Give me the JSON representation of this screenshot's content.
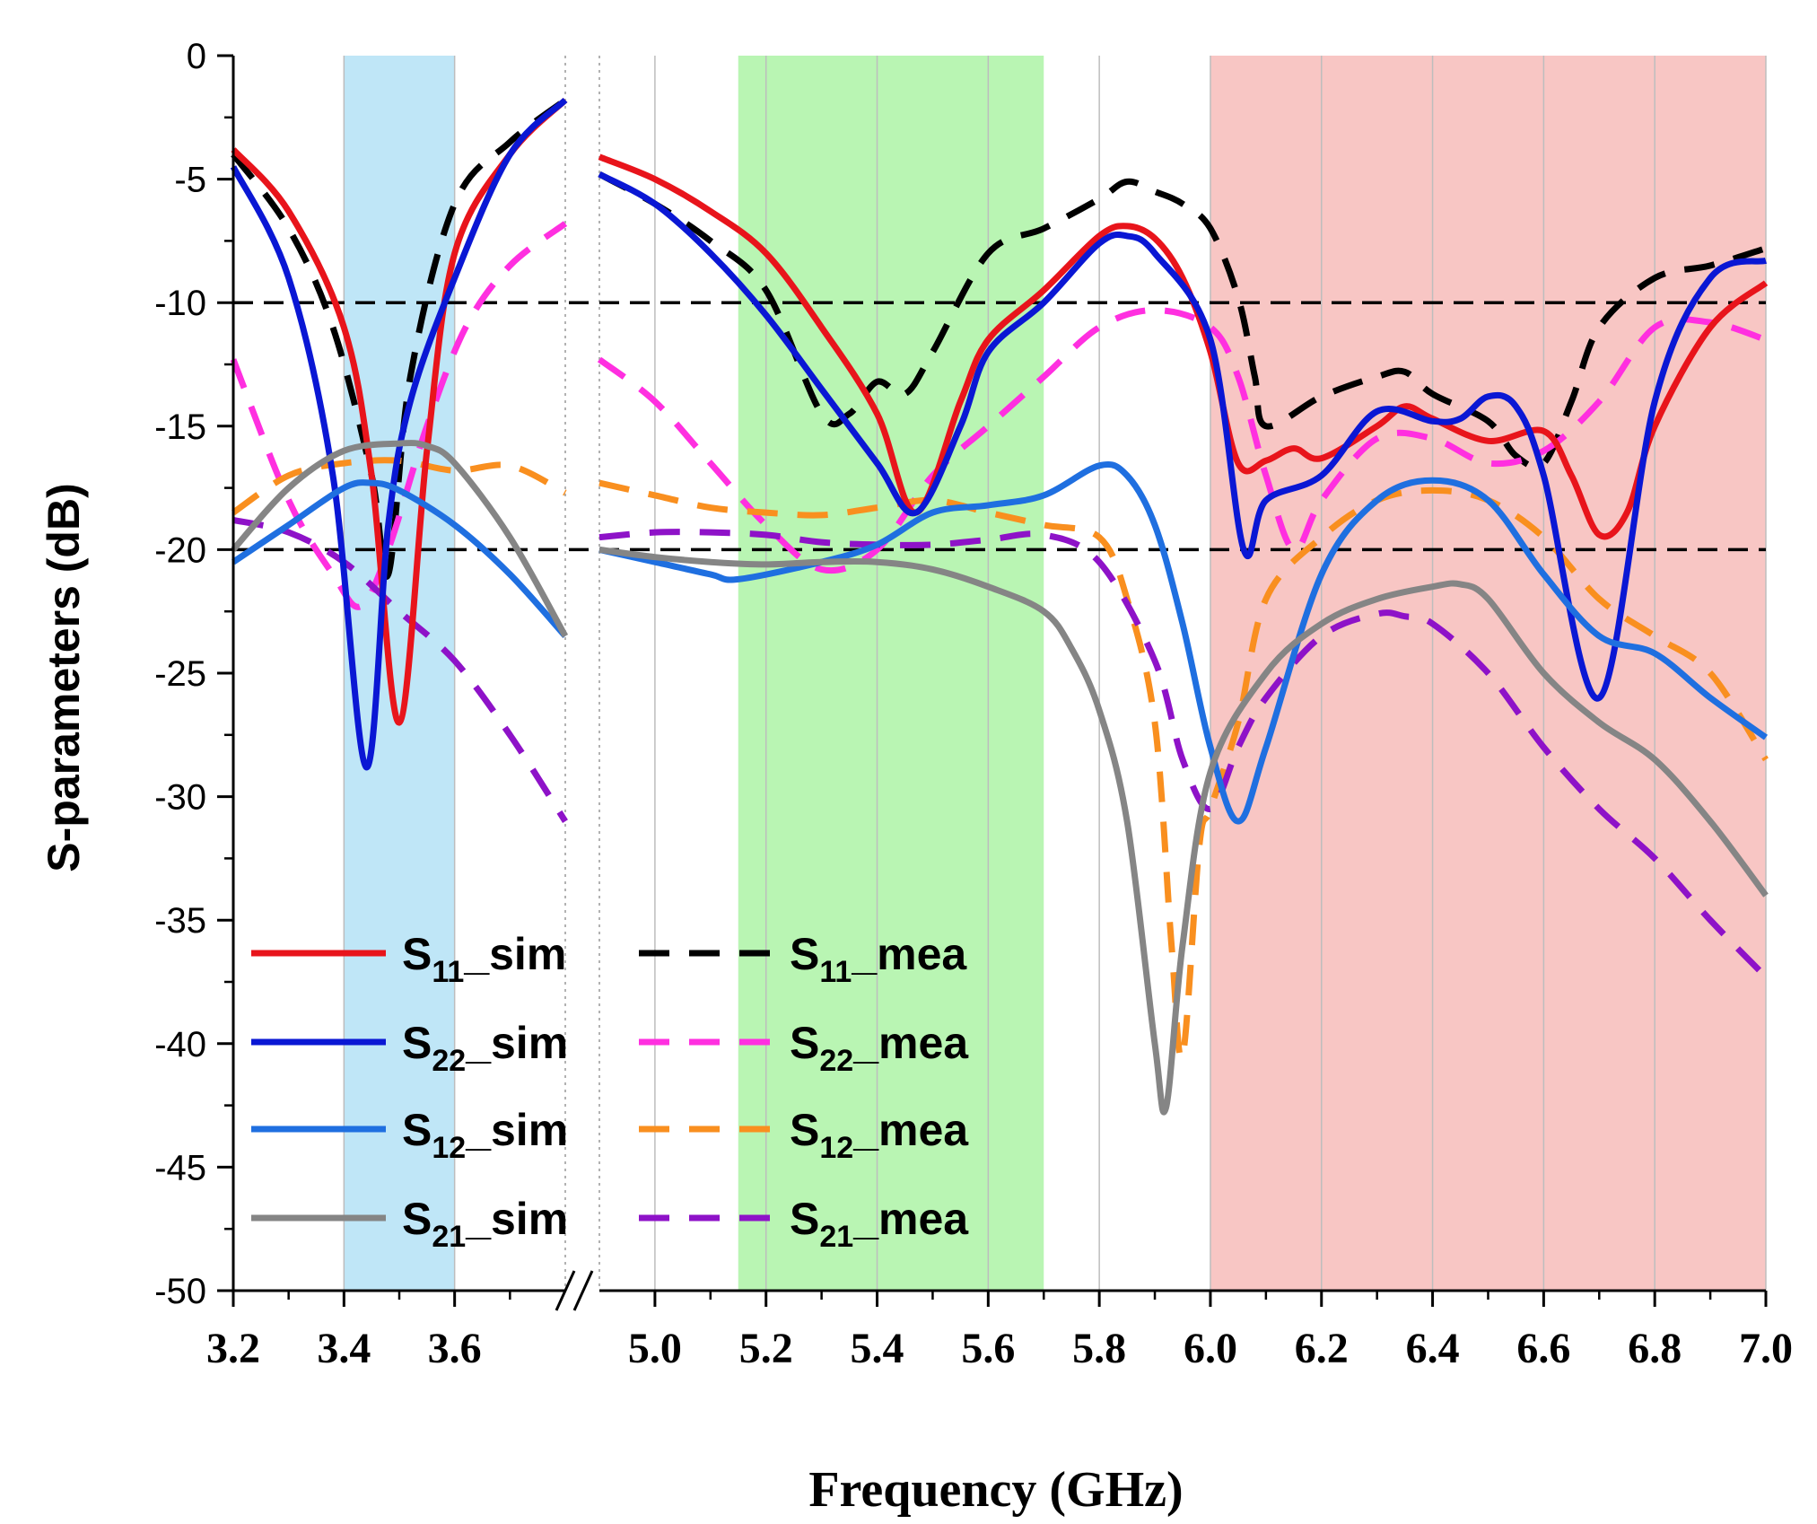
{
  "chart_data": {
    "type": "line",
    "xlabel": "Frequency (GHz)",
    "ylabel": "S-parameters (dB)",
    "ylim": [
      -50,
      0
    ],
    "broken_x_axis": {
      "segment1": {
        "range": [
          3.2,
          3.8
        ],
        "ticks": [
          "3.2",
          "3.4",
          "3.6"
        ]
      },
      "segment2": {
        "range": [
          4.9,
          7.0
        ],
        "ticks": [
          "5.0",
          "5.2",
          "5.4",
          "5.6",
          "5.8",
          "6.0",
          "6.2",
          "6.4",
          "6.6",
          "6.8",
          "7.0"
        ]
      }
    },
    "yticks": [
      "0",
      "-5",
      "-10",
      "-15",
      "-20",
      "-25",
      "-30",
      "-35",
      "-40",
      "-45",
      "-50"
    ],
    "reference_lines": [
      -10,
      -20
    ],
    "bands": [
      {
        "from": 3.4,
        "to": 3.6,
        "color": "#bfe6f7"
      },
      {
        "from": 5.15,
        "to": 5.7,
        "color": "#b9f5b3"
      },
      {
        "from": 6.0,
        "to": 7.0,
        "color": "#f8c6c4"
      }
    ],
    "series": [
      {
        "key": "s11_sim",
        "label_base": "S",
        "label_sub": "11",
        "label_suffix": "_sim",
        "color": "#e8141b",
        "dashed": false,
        "seg1": [
          [
            3.2,
            -3.8
          ],
          [
            3.3,
            -6.3
          ],
          [
            3.4,
            -11
          ],
          [
            3.45,
            -17
          ],
          [
            3.5,
            -27
          ],
          [
            3.55,
            -16
          ],
          [
            3.6,
            -8
          ],
          [
            3.7,
            -4
          ],
          [
            3.8,
            -1.8
          ]
        ],
        "seg2": [
          [
            4.9,
            -4.1
          ],
          [
            5.0,
            -5
          ],
          [
            5.1,
            -6.3
          ],
          [
            5.2,
            -8
          ],
          [
            5.3,
            -11
          ],
          [
            5.4,
            -14.5
          ],
          [
            5.47,
            -18.5
          ],
          [
            5.55,
            -14
          ],
          [
            5.6,
            -11.5
          ],
          [
            5.7,
            -9.5
          ],
          [
            5.8,
            -7.3
          ],
          [
            5.85,
            -6.9
          ],
          [
            5.9,
            -7.4
          ],
          [
            5.95,
            -9
          ],
          [
            6.0,
            -12
          ],
          [
            6.05,
            -16.5
          ],
          [
            6.1,
            -16.4
          ],
          [
            6.15,
            -15.9
          ],
          [
            6.2,
            -16.3
          ],
          [
            6.3,
            -15
          ],
          [
            6.35,
            -14.2
          ],
          [
            6.4,
            -14.7
          ],
          [
            6.5,
            -15.6
          ],
          [
            6.6,
            -15.2
          ],
          [
            6.65,
            -17
          ],
          [
            6.7,
            -19.4
          ],
          [
            6.75,
            -18.5
          ],
          [
            6.8,
            -15
          ],
          [
            6.9,
            -11
          ],
          [
            7.0,
            -9.2
          ]
        ]
      },
      {
        "key": "s11_mea",
        "label_base": "S",
        "label_sub": "11",
        "label_suffix": "_mea",
        "color": "#000000",
        "dashed": true,
        "seg1": [
          [
            3.2,
            -4
          ],
          [
            3.3,
            -7
          ],
          [
            3.38,
            -11
          ],
          [
            3.45,
            -17
          ],
          [
            3.48,
            -21
          ],
          [
            3.52,
            -13
          ],
          [
            3.6,
            -6
          ],
          [
            3.7,
            -3.5
          ],
          [
            3.8,
            -1.8
          ]
        ],
        "seg2": [
          [
            4.9,
            -4.8
          ],
          [
            5.0,
            -6
          ],
          [
            5.1,
            -7.5
          ],
          [
            5.2,
            -9.5
          ],
          [
            5.3,
            -14.5
          ],
          [
            5.35,
            -14.5
          ],
          [
            5.4,
            -13.2
          ],
          [
            5.45,
            -13.7
          ],
          [
            5.5,
            -12
          ],
          [
            5.6,
            -8
          ],
          [
            5.7,
            -7
          ],
          [
            5.8,
            -5.8
          ],
          [
            5.85,
            -5.1
          ],
          [
            5.9,
            -5.5
          ],
          [
            5.95,
            -6
          ],
          [
            6.0,
            -7
          ],
          [
            6.05,
            -9.8
          ],
          [
            6.08,
            -13
          ],
          [
            6.1,
            -15
          ],
          [
            6.2,
            -13.8
          ],
          [
            6.3,
            -13
          ],
          [
            6.35,
            -12.8
          ],
          [
            6.4,
            -13.7
          ],
          [
            6.5,
            -14.8
          ],
          [
            6.55,
            -16.2
          ],
          [
            6.6,
            -16.5
          ],
          [
            6.65,
            -14
          ],
          [
            6.7,
            -11
          ],
          [
            6.8,
            -9
          ],
          [
            6.9,
            -8.5
          ],
          [
            7.0,
            -7.8
          ]
        ]
      },
      {
        "key": "s22_sim",
        "label_base": "S",
        "label_sub": "22",
        "label_suffix": "_sim",
        "color": "#0a17d4",
        "dashed": false,
        "seg1": [
          [
            3.2,
            -4.5
          ],
          [
            3.3,
            -9
          ],
          [
            3.38,
            -17
          ],
          [
            3.44,
            -28.8
          ],
          [
            3.48,
            -19
          ],
          [
            3.52,
            -14
          ],
          [
            3.6,
            -9
          ],
          [
            3.7,
            -4
          ],
          [
            3.8,
            -1.8
          ]
        ],
        "seg2": [
          [
            4.9,
            -4.8
          ],
          [
            5.0,
            -6
          ],
          [
            5.1,
            -8
          ],
          [
            5.2,
            -10.5
          ],
          [
            5.3,
            -13.5
          ],
          [
            5.4,
            -16.5
          ],
          [
            5.47,
            -18.5
          ],
          [
            5.55,
            -15
          ],
          [
            5.6,
            -12
          ],
          [
            5.7,
            -10
          ],
          [
            5.8,
            -7.6
          ],
          [
            5.85,
            -7.3
          ],
          [
            5.9,
            -8
          ],
          [
            6.0,
            -11.5
          ],
          [
            6.06,
            -20
          ],
          [
            6.1,
            -18
          ],
          [
            6.2,
            -17
          ],
          [
            6.3,
            -14.4
          ],
          [
            6.4,
            -14.8
          ],
          [
            6.45,
            -14.7
          ],
          [
            6.5,
            -13.8
          ],
          [
            6.55,
            -14.2
          ],
          [
            6.6,
            -17
          ],
          [
            6.7,
            -26
          ],
          [
            6.8,
            -14
          ],
          [
            6.9,
            -9
          ],
          [
            7.0,
            -8.3
          ]
        ]
      },
      {
        "key": "s22_mea",
        "label_base": "S",
        "label_sub": "22",
        "label_suffix": "_mea",
        "color": "#ff2fe0",
        "dashed": true,
        "seg1": [
          [
            3.2,
            -12.3
          ],
          [
            3.3,
            -18
          ],
          [
            3.38,
            -21
          ],
          [
            3.43,
            -22.3
          ],
          [
            3.48,
            -20
          ],
          [
            3.55,
            -15
          ],
          [
            3.62,
            -11
          ],
          [
            3.7,
            -8.5
          ],
          [
            3.8,
            -6.8
          ]
        ],
        "seg2": [
          [
            4.9,
            -12.3
          ],
          [
            5.0,
            -14
          ],
          [
            5.1,
            -16.5
          ],
          [
            5.2,
            -19
          ],
          [
            5.3,
            -20.8
          ],
          [
            5.4,
            -20
          ],
          [
            5.5,
            -17
          ],
          [
            5.6,
            -15
          ],
          [
            5.7,
            -13
          ],
          [
            5.8,
            -11
          ],
          [
            5.9,
            -10.3
          ],
          [
            6.0,
            -11
          ],
          [
            6.05,
            -13
          ],
          [
            6.1,
            -17
          ],
          [
            6.15,
            -20
          ],
          [
            6.2,
            -18
          ],
          [
            6.3,
            -15.5
          ],
          [
            6.4,
            -15.5
          ],
          [
            6.5,
            -16.5
          ],
          [
            6.6,
            -16
          ],
          [
            6.7,
            -14
          ],
          [
            6.8,
            -11
          ],
          [
            6.9,
            -10.8
          ],
          [
            7.0,
            -11.5
          ]
        ]
      },
      {
        "key": "s12_sim",
        "label_base": "S",
        "label_sub": "12",
        "label_suffix": "_sim",
        "color": "#1f6fe0",
        "dashed": false,
        "seg1": [
          [
            3.2,
            -20.5
          ],
          [
            3.3,
            -19
          ],
          [
            3.4,
            -17.5
          ],
          [
            3.45,
            -17.3
          ],
          [
            3.5,
            -17.6
          ],
          [
            3.6,
            -19
          ],
          [
            3.7,
            -21
          ],
          [
            3.8,
            -23.5
          ]
        ],
        "seg2": [
          [
            4.9,
            -20
          ],
          [
            5.0,
            -20.5
          ],
          [
            5.1,
            -21
          ],
          [
            5.15,
            -21.2
          ],
          [
            5.3,
            -20.5
          ],
          [
            5.4,
            -19.8
          ],
          [
            5.5,
            -18.5
          ],
          [
            5.6,
            -18.2
          ],
          [
            5.7,
            -17.8
          ],
          [
            5.8,
            -16.6
          ],
          [
            5.85,
            -17
          ],
          [
            5.9,
            -19
          ],
          [
            5.95,
            -23
          ],
          [
            6.0,
            -28
          ],
          [
            6.05,
            -31
          ],
          [
            6.1,
            -28
          ],
          [
            6.2,
            -21
          ],
          [
            6.3,
            -18
          ],
          [
            6.4,
            -17.2
          ],
          [
            6.5,
            -18
          ],
          [
            6.6,
            -21
          ],
          [
            6.7,
            -23.5
          ],
          [
            6.8,
            -24.2
          ],
          [
            6.9,
            -26
          ],
          [
            7.0,
            -27.6
          ]
        ]
      },
      {
        "key": "s12_mea",
        "label_base": "S",
        "label_sub": "12",
        "label_suffix": "_mea",
        "color": "#f98f1f",
        "dashed": true,
        "seg1": [
          [
            3.2,
            -18.5
          ],
          [
            3.3,
            -17
          ],
          [
            3.4,
            -16.5
          ],
          [
            3.5,
            -16.4
          ],
          [
            3.6,
            -16.8
          ],
          [
            3.7,
            -16.6
          ],
          [
            3.8,
            -17.7
          ]
        ],
        "seg2": [
          [
            4.9,
            -17.3
          ],
          [
            5.0,
            -17.8
          ],
          [
            5.1,
            -18.3
          ],
          [
            5.2,
            -18.5
          ],
          [
            5.3,
            -18.6
          ],
          [
            5.4,
            -18.3
          ],
          [
            5.5,
            -18
          ],
          [
            5.6,
            -18.5
          ],
          [
            5.7,
            -19
          ],
          [
            5.8,
            -19.5
          ],
          [
            5.85,
            -22
          ],
          [
            5.9,
            -27
          ],
          [
            5.93,
            -36
          ],
          [
            5.95,
            -40.5
          ],
          [
            5.98,
            -32
          ],
          [
            6.0,
            -30.5
          ],
          [
            6.05,
            -27
          ],
          [
            6.1,
            -22
          ],
          [
            6.2,
            -19.5
          ],
          [
            6.3,
            -18
          ],
          [
            6.4,
            -17.6
          ],
          [
            6.5,
            -18
          ],
          [
            6.6,
            -19.5
          ],
          [
            6.7,
            -22
          ],
          [
            6.8,
            -23.5
          ],
          [
            6.9,
            -25
          ],
          [
            7.0,
            -28.5
          ]
        ]
      },
      {
        "key": "s21_sim",
        "label_base": "S",
        "label_sub": "21",
        "label_suffix": "_sim",
        "color": "#858585",
        "dashed": false,
        "seg1": [
          [
            3.2,
            -20
          ],
          [
            3.3,
            -17.5
          ],
          [
            3.4,
            -16
          ],
          [
            3.5,
            -15.7
          ],
          [
            3.55,
            -15.8
          ],
          [
            3.6,
            -16.5
          ],
          [
            3.7,
            -19.5
          ],
          [
            3.8,
            -23.5
          ]
        ],
        "seg2": [
          [
            4.9,
            -20
          ],
          [
            5.0,
            -20.3
          ],
          [
            5.1,
            -20.5
          ],
          [
            5.2,
            -20.6
          ],
          [
            5.3,
            -20.5
          ],
          [
            5.4,
            -20.5
          ],
          [
            5.5,
            -20.8
          ],
          [
            5.6,
            -21.5
          ],
          [
            5.7,
            -22.5
          ],
          [
            5.75,
            -24
          ],
          [
            5.8,
            -26.5
          ],
          [
            5.85,
            -31
          ],
          [
            5.9,
            -40
          ],
          [
            5.92,
            -42.6
          ],
          [
            5.95,
            -36
          ],
          [
            6.0,
            -29
          ],
          [
            6.1,
            -25
          ],
          [
            6.2,
            -23
          ],
          [
            6.3,
            -22
          ],
          [
            6.4,
            -21.5
          ],
          [
            6.45,
            -21.4
          ],
          [
            6.5,
            -22
          ],
          [
            6.6,
            -25
          ],
          [
            6.7,
            -27
          ],
          [
            6.8,
            -28.5
          ],
          [
            6.9,
            -31
          ],
          [
            7.0,
            -34
          ]
        ]
      },
      {
        "key": "s21_mea",
        "label_base": "S",
        "label_sub": "21",
        "label_suffix": "_mea",
        "color": "#8e12c8",
        "dashed": true,
        "seg1": [
          [
            3.2,
            -18.8
          ],
          [
            3.3,
            -19.3
          ],
          [
            3.4,
            -20.5
          ],
          [
            3.5,
            -22.5
          ],
          [
            3.6,
            -24.5
          ],
          [
            3.7,
            -27.5
          ],
          [
            3.8,
            -31
          ]
        ],
        "seg2": [
          [
            4.9,
            -19.5
          ],
          [
            5.0,
            -19.3
          ],
          [
            5.1,
            -19.3
          ],
          [
            5.2,
            -19.4
          ],
          [
            5.3,
            -19.7
          ],
          [
            5.4,
            -19.8
          ],
          [
            5.5,
            -19.8
          ],
          [
            5.6,
            -19.6
          ],
          [
            5.7,
            -19.4
          ],
          [
            5.8,
            -20.5
          ],
          [
            5.9,
            -24.5
          ],
          [
            5.95,
            -28.5
          ],
          [
            6.0,
            -30.5
          ],
          [
            6.05,
            -28
          ],
          [
            6.1,
            -26
          ],
          [
            6.2,
            -23.5
          ],
          [
            6.3,
            -22.6
          ],
          [
            6.35,
            -22.7
          ],
          [
            6.4,
            -23
          ],
          [
            6.5,
            -25
          ],
          [
            6.6,
            -28
          ],
          [
            6.7,
            -30.5
          ],
          [
            6.8,
            -32.5
          ],
          [
            6.9,
            -35
          ],
          [
            7.0,
            -37.3
          ]
        ]
      }
    ]
  }
}
